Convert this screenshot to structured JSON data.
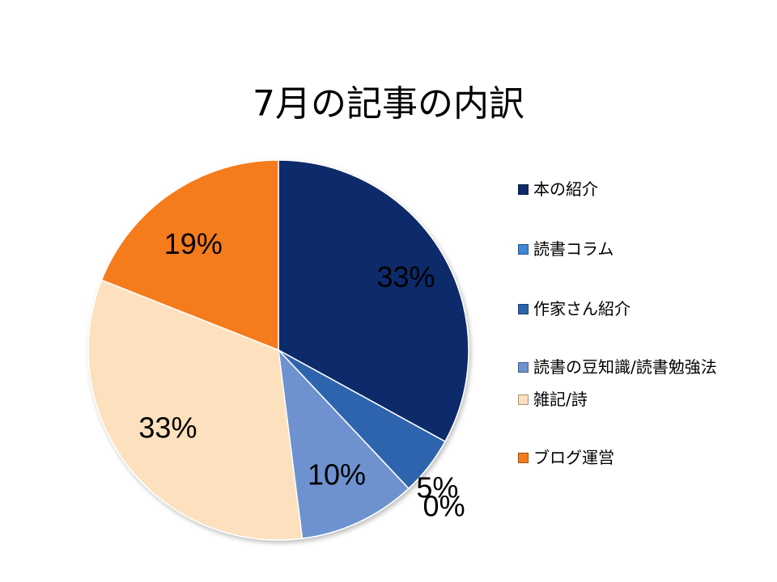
{
  "chart_data": {
    "type": "pie",
    "title": "7月の記事の内訳",
    "slices": [
      {
        "label": "本の紹介",
        "value": 33,
        "value_label": "33%",
        "color": "#0f2a6b"
      },
      {
        "label": "作家さん紹介",
        "value": 5,
        "value_label": "5%",
        "color": "#2e63ad"
      },
      {
        "label": "読書コラム",
        "value": 0,
        "value_label": "0%",
        "color": "#3f86d6"
      },
      {
        "label": "読書の豆知識/読書勉強法",
        "value": 10,
        "value_label": "10%",
        "color": "#6d92cf"
      },
      {
        "label": "雑記/詩",
        "value": 33,
        "value_label": "33%",
        "color": "#fde0bd"
      },
      {
        "label": "ブログ運営",
        "value": 19,
        "value_label": "19%",
        "color": "#f47c1c"
      }
    ],
    "legend_position": "right",
    "start_angle": "top, clockwise"
  },
  "legend_order": [
    0,
    2,
    1,
    3,
    4,
    5
  ]
}
